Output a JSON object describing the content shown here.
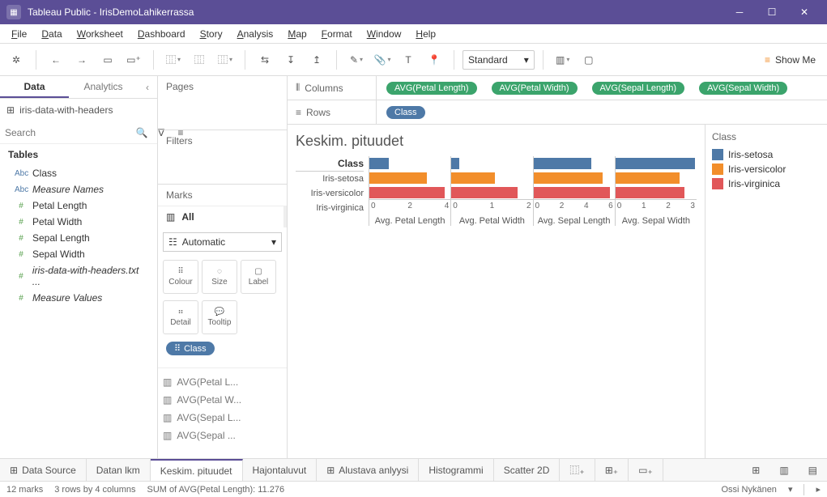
{
  "window": {
    "title": "Tableau Public - IrisDemoLahikerrassa"
  },
  "menu": [
    "File",
    "Data",
    "Worksheet",
    "Dashboard",
    "Story",
    "Analysis",
    "Map",
    "Format",
    "Window",
    "Help"
  ],
  "toolbar": {
    "standard": "Standard",
    "showme": "Show Me"
  },
  "left": {
    "tabs": {
      "data": "Data",
      "analytics": "Analytics"
    },
    "datasource": "iris-data-with-headers",
    "search_placeholder": "Search",
    "tables_label": "Tables",
    "dims": [
      {
        "icon": "Abc",
        "label": "Class"
      },
      {
        "icon": "Abc",
        "label": "Measure Names",
        "italic": true
      }
    ],
    "meas": [
      {
        "icon": "#",
        "label": "Petal Length"
      },
      {
        "icon": "#",
        "label": "Petal Width"
      },
      {
        "icon": "#",
        "label": "Sepal Length"
      },
      {
        "icon": "#",
        "label": "Sepal Width"
      },
      {
        "icon": "#",
        "label": "iris-data-with-headers.txt ...",
        "italic": true
      },
      {
        "icon": "#",
        "label": "Measure Values",
        "italic": true
      }
    ]
  },
  "mid": {
    "pages": "Pages",
    "filters": "Filters",
    "marks": "Marks",
    "all": "All",
    "automatic": "Automatic",
    "cards": [
      "Colour",
      "Size",
      "Label",
      "Detail",
      "Tooltip"
    ],
    "class_pill": "Class",
    "measures": [
      "AVG(Petal L...",
      "AVG(Petal W...",
      "AVG(Sepal L...",
      "AVG(Sepal ..."
    ]
  },
  "shelves": {
    "columns_label": "Columns",
    "rows_label": "Rows",
    "columns": [
      "AVG(Petal Length)",
      "AVG(Petal Width)",
      "AVG(Sepal Length)",
      "AVG(Sepal Width)"
    ],
    "rows": [
      "Class"
    ]
  },
  "viz": {
    "title": "Keskim. pituudet",
    "row_header": "Class",
    "classes": [
      "Iris-setosa",
      "Iris-versicolor",
      "Iris-virginica"
    ],
    "colors": {
      "Iris-setosa": "#4e79a7",
      "Iris-versicolor": "#f28e2b",
      "Iris-virginica": "#e15759"
    },
    "panels": [
      {
        "label": "Avg. Petal Length",
        "max": 6,
        "ticks": [
          0,
          2,
          4
        ],
        "vals": {
          "Iris-setosa": 1.46,
          "Iris-versicolor": 4.26,
          "Iris-virginica": 5.55
        }
      },
      {
        "label": "Avg. Petal Width",
        "max": 2.5,
        "ticks": [
          0,
          1,
          2
        ],
        "vals": {
          "Iris-setosa": 0.25,
          "Iris-versicolor": 1.33,
          "Iris-virginica": 2.03
        }
      },
      {
        "label": "Avg. Sepal Length",
        "max": 7,
        "ticks": [
          0,
          2,
          4,
          6
        ],
        "vals": {
          "Iris-setosa": 5.01,
          "Iris-versicolor": 5.94,
          "Iris-virginica": 6.59
        }
      },
      {
        "label": "Avg. Sepal Width",
        "max": 3.5,
        "ticks": [
          0,
          1,
          2,
          3
        ],
        "vals": {
          "Iris-setosa": 3.42,
          "Iris-versicolor": 2.77,
          "Iris-virginica": 2.97
        }
      }
    ],
    "legend_title": "Class"
  },
  "sheets": {
    "datasource": "Data Source",
    "tabs": [
      "Datan lkm",
      "Keskim. pituudet",
      "Hajontaluvut",
      "Alustava anlyysi",
      "Histogrammi",
      "Scatter 2D"
    ],
    "active": "Keskim. pituudet"
  },
  "status": {
    "marks": "12 marks",
    "dims": "3 rows by 4 columns",
    "sum": "SUM of AVG(Petal Length): 11.276",
    "user": "Ossi Nykänen"
  }
}
